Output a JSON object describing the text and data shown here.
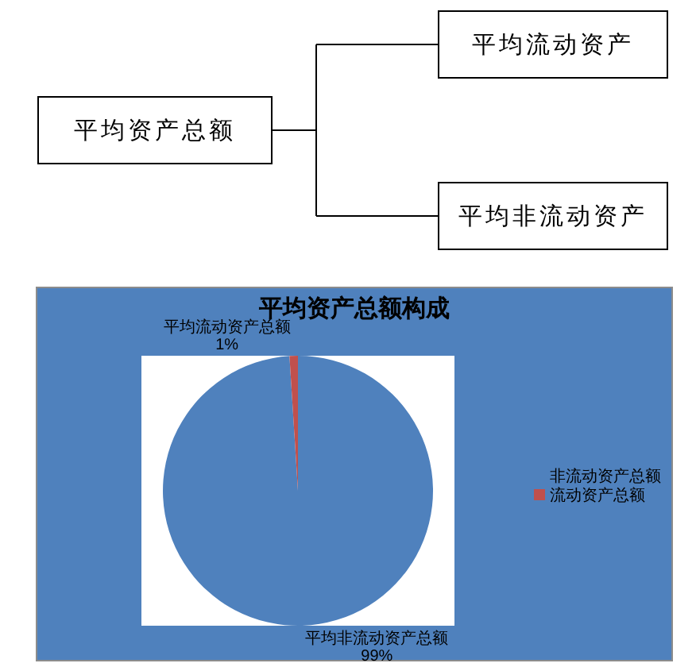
{
  "chart_data": [
    {
      "type": "other",
      "annotations": [
        "平均资产总额",
        "平均流动资产",
        "平均非流动资产"
      ]
    },
    {
      "type": "pie",
      "title": "平均资产总额构成",
      "categories": [
        "非流动资产总额",
        "流动资产总额"
      ],
      "values": [
        99,
        1
      ],
      "colors": [
        "#4f81bd",
        "#c0504d"
      ],
      "value_labels": [
        "平均非流动资产总额\n99%",
        "平均流动资产总额\n1%"
      ],
      "legend": "right"
    }
  ]
}
